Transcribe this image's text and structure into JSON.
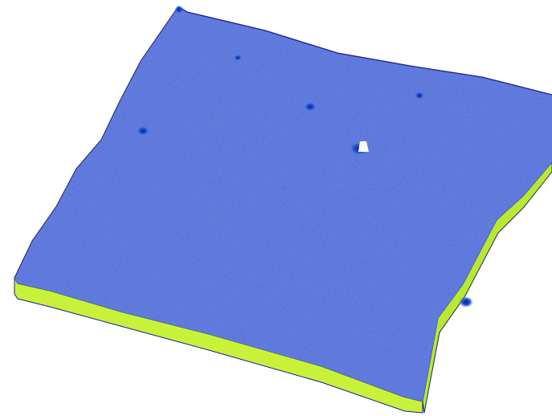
{
  "image": {
    "kind": "3d-surface-height-map-render",
    "background": "#ffffff",
    "surface_colors": {
      "high": "#f08020",
      "upper": "#e2f03a",
      "mid": "#6fe24a",
      "lower": "#2fc06a",
      "low": "#2e8fd0",
      "lowest": "#1f2fb8",
      "peak_highlight": "#ffffff"
    },
    "side_colors": {
      "front": "#c8f23a",
      "right": "#b6e52c",
      "edge_outline": "#1a1f8a"
    }
  }
}
